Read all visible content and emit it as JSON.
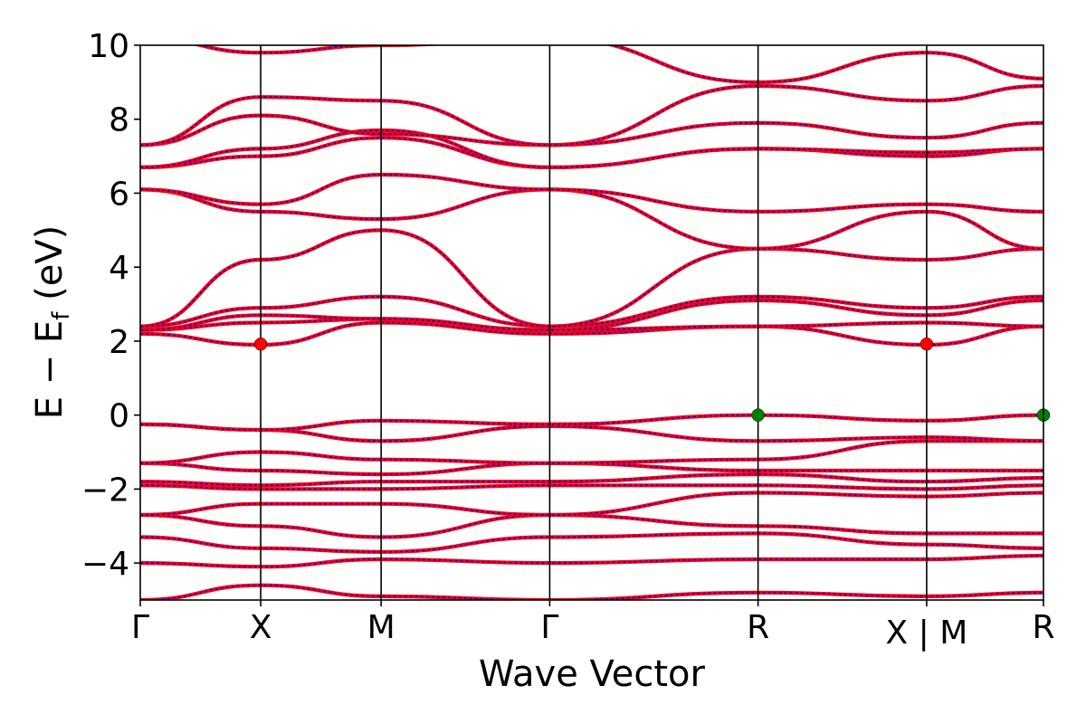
{
  "chart_data": {
    "type": "line",
    "title": "",
    "xlabel": "Wave Vector",
    "ylabel": "E − E_f (eV)",
    "ylabel_main": "E − E",
    "ylabel_sub": "f",
    "ylabel_unit": " (eV)",
    "ylim": [
      -5,
      10
    ],
    "xlim": [
      0,
      7.5
    ],
    "y_ticks": [
      10,
      8,
      6,
      4,
      2,
      0,
      -2,
      -4
    ],
    "y_tick_labels": [
      "10",
      "8",
      "6",
      "4",
      "2",
      "0",
      "−2",
      "−4"
    ],
    "kpoints": [
      {
        "label": "Γ",
        "x": 0
      },
      {
        "label": "X",
        "x": 1
      },
      {
        "label": "M",
        "x": 2
      },
      {
        "label": "Γ",
        "x": 3.4
      },
      {
        "label": "R",
        "x": 5.13
      },
      {
        "label": "X | M",
        "x": 6.53
      },
      {
        "label": "R",
        "x": 7.5
      }
    ],
    "grid": false,
    "series": [
      {
        "color_primary": "#ff0000",
        "color_secondary": "#0000ff",
        "bands": [
          {
            "k": [
              0,
              1,
              2,
              3.4,
              5.13,
              6.53,
              7.5
            ],
            "e": [
              -5.0,
              -4.6,
              -4.9,
              -5.0,
              -4.8,
              -4.9,
              -4.8
            ]
          },
          {
            "k": [
              0,
              1,
              2,
              3.4,
              5.13,
              6.53,
              7.5
            ],
            "e": [
              -4.0,
              -4.1,
              -3.9,
              -4.0,
              -3.9,
              -3.9,
              -3.8
            ]
          },
          {
            "k": [
              0,
              1,
              2,
              3.4,
              5.13,
              6.53,
              7.5
            ],
            "e": [
              -3.3,
              -3.6,
              -3.7,
              -3.3,
              -3.2,
              -3.5,
              -3.6
            ]
          },
          {
            "k": [
              0,
              1,
              2,
              3.4,
              5.13,
              6.53,
              7.5
            ],
            "e": [
              -2.7,
              -3.0,
              -3.3,
              -2.7,
              -3.0,
              -3.2,
              -3.2
            ]
          },
          {
            "k": [
              0,
              1,
              2,
              3.4,
              5.13,
              6.53,
              7.5
            ],
            "e": [
              -2.7,
              -2.4,
              -2.4,
              -2.7,
              -2.1,
              -2.2,
              -2.1
            ]
          },
          {
            "k": [
              0,
              1,
              2,
              3.4,
              5.13,
              6.53,
              7.5
            ],
            "e": [
              -1.9,
              -2.0,
              -2.0,
              -1.9,
              -1.9,
              -2.0,
              -1.9
            ]
          },
          {
            "k": [
              0,
              1,
              2,
              3.4,
              5.13,
              6.53,
              7.5
            ],
            "e": [
              -1.8,
              -1.9,
              -1.8,
              -1.8,
              -1.6,
              -1.8,
              -1.7
            ]
          },
          {
            "k": [
              0,
              1,
              2,
              3.4,
              5.13,
              6.53,
              7.5
            ],
            "e": [
              -1.3,
              -1.5,
              -1.6,
              -1.3,
              -1.5,
              -1.5,
              -1.5
            ]
          },
          {
            "k": [
              0,
              1,
              2,
              3.4,
              5.13,
              6.53,
              7.5
            ],
            "e": [
              -1.3,
              -1.0,
              -1.2,
              -1.3,
              -1.2,
              -0.7,
              -0.7
            ]
          },
          {
            "k": [
              0,
              1,
              2,
              3.4,
              5.13,
              6.53,
              7.5
            ],
            "e": [
              -0.25,
              -0.4,
              -0.7,
              -0.3,
              -0.7,
              -0.6,
              -0.7
            ]
          },
          {
            "k": [
              0,
              1,
              2,
              3.4,
              5.13,
              6.53,
              7.5
            ],
            "e": [
              -0.25,
              -0.4,
              -0.15,
              -0.25,
              0.0,
              -0.15,
              0.0
            ]
          },
          {
            "k": [
              0,
              1,
              2,
              3.4,
              5.13,
              6.53,
              7.5
            ],
            "e": [
              2.2,
              1.9,
              2.5,
              2.2,
              2.4,
              1.9,
              2.4
            ]
          },
          {
            "k": [
              0,
              1,
              2,
              3.4,
              5.13,
              6.53,
              7.5
            ],
            "e": [
              2.3,
              2.5,
              2.6,
              2.3,
              2.4,
              2.5,
              2.4
            ]
          },
          {
            "k": [
              0,
              1,
              2,
              3.4,
              5.13,
              6.53,
              7.5
            ],
            "e": [
              2.3,
              2.7,
              2.6,
              2.3,
              3.1,
              2.7,
              3.1
            ]
          },
          {
            "k": [
              0,
              1,
              2,
              3.4,
              5.13,
              6.53,
              7.5
            ],
            "e": [
              2.4,
              2.9,
              3.2,
              2.4,
              3.2,
              2.9,
              3.2
            ]
          },
          {
            "k": [
              0,
              1,
              2,
              3.4,
              5.13,
              6.53,
              7.5
            ],
            "e": [
              2.4,
              4.2,
              5.0,
              2.4,
              4.5,
              4.2,
              4.5
            ]
          },
          {
            "k": [
              0,
              1,
              2,
              3.4,
              5.13,
              6.53,
              7.5
            ],
            "e": [
              6.1,
              5.5,
              5.3,
              6.1,
              4.5,
              5.5,
              4.5
            ]
          },
          {
            "k": [
              0,
              1,
              2,
              3.4,
              5.13,
              6.53,
              7.5
            ],
            "e": [
              6.1,
              5.7,
              6.5,
              6.1,
              5.5,
              5.7,
              5.5
            ]
          },
          {
            "k": [
              0,
              1,
              2,
              3.4,
              5.13,
              6.53,
              7.5
            ],
            "e": [
              6.7,
              7.0,
              7.5,
              6.7,
              7.2,
              7.0,
              7.2
            ]
          },
          {
            "k": [
              0,
              1,
              2,
              3.4,
              5.13,
              6.53,
              7.5
            ],
            "e": [
              6.7,
              7.2,
              7.7,
              6.7,
              7.2,
              7.1,
              7.2
            ]
          },
          {
            "k": [
              0,
              1,
              2,
              3.4,
              5.13,
              6.53,
              7.5
            ],
            "e": [
              7.3,
              8.1,
              7.6,
              7.3,
              7.9,
              7.5,
              7.9
            ]
          },
          {
            "k": [
              0,
              1,
              2,
              3.4,
              5.13,
              6.53,
              7.5
            ],
            "e": [
              7.3,
              8.6,
              8.5,
              7.3,
              8.9,
              8.5,
              8.9
            ]
          },
          {
            "k": [
              0,
              1,
              2,
              3.4,
              5.13,
              6.53,
              7.5
            ],
            "e": [
              10.2,
              9.8,
              10.0,
              10.2,
              9.0,
              9.8,
              9.1
            ]
          }
        ]
      }
    ],
    "markers": [
      {
        "x": 1,
        "y": 1.92,
        "color": "#ff0000"
      },
      {
        "x": 6.53,
        "y": 1.92,
        "color": "#ff0000"
      },
      {
        "x": 5.13,
        "y": 0.0,
        "color": "#008000"
      },
      {
        "x": 7.5,
        "y": 0.0,
        "color": "#008000"
      }
    ]
  }
}
